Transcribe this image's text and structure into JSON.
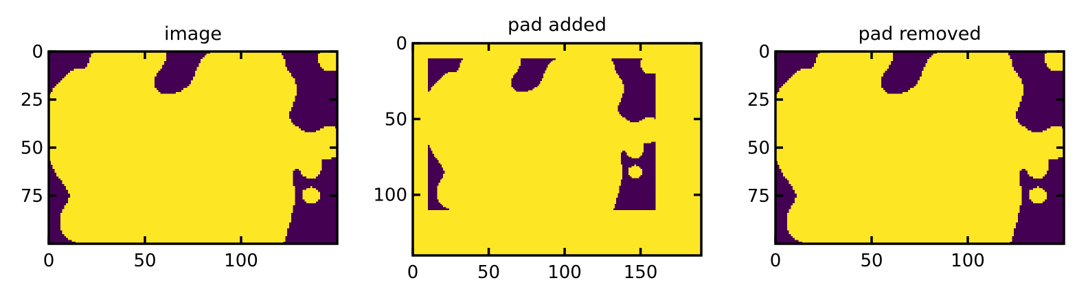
{
  "chart_data": [
    {
      "type": "heatmap",
      "title": "image",
      "image_shape": [
        100,
        150
      ],
      "xlim": [
        0,
        150
      ],
      "ylim": [
        100,
        0
      ],
      "xticks": [
        0,
        50,
        100
      ],
      "yticks": [
        0,
        25,
        50,
        75
      ],
      "xtick_labels": [
        "0",
        "50",
        "100"
      ],
      "ytick_labels": [
        "0",
        "25",
        "50",
        "75"
      ],
      "colormap": [
        "#440154",
        "#fde725"
      ],
      "pad": null
    },
    {
      "type": "heatmap",
      "title": "pad added",
      "image_shape": [
        140,
        190
      ],
      "xlim": [
        0,
        190
      ],
      "ylim": [
        140,
        0
      ],
      "xticks": [
        0,
        50,
        100,
        150
      ],
      "yticks": [
        0,
        50,
        100
      ],
      "xtick_labels": [
        "0",
        "50",
        "100",
        "150"
      ],
      "ytick_labels": [
        "0",
        "50",
        "100"
      ],
      "colormap": [
        "#440154",
        "#fde725"
      ],
      "pad": {
        "inner_x": [
          10,
          160
        ],
        "inner_y": [
          10,
          110
        ]
      }
    },
    {
      "type": "heatmap",
      "title": "pad removed",
      "image_shape": [
        100,
        150
      ],
      "xlim": [
        0,
        150
      ],
      "ylim": [
        100,
        0
      ],
      "xticks": [
        0,
        50,
        100
      ],
      "yticks": [
        0,
        25,
        50,
        75
      ],
      "xtick_labels": [
        "0",
        "50",
        "100"
      ],
      "ytick_labels": [
        "0",
        "25",
        "50",
        "75"
      ],
      "colormap": [
        "#440154",
        "#fde725"
      ],
      "pad": null
    }
  ]
}
